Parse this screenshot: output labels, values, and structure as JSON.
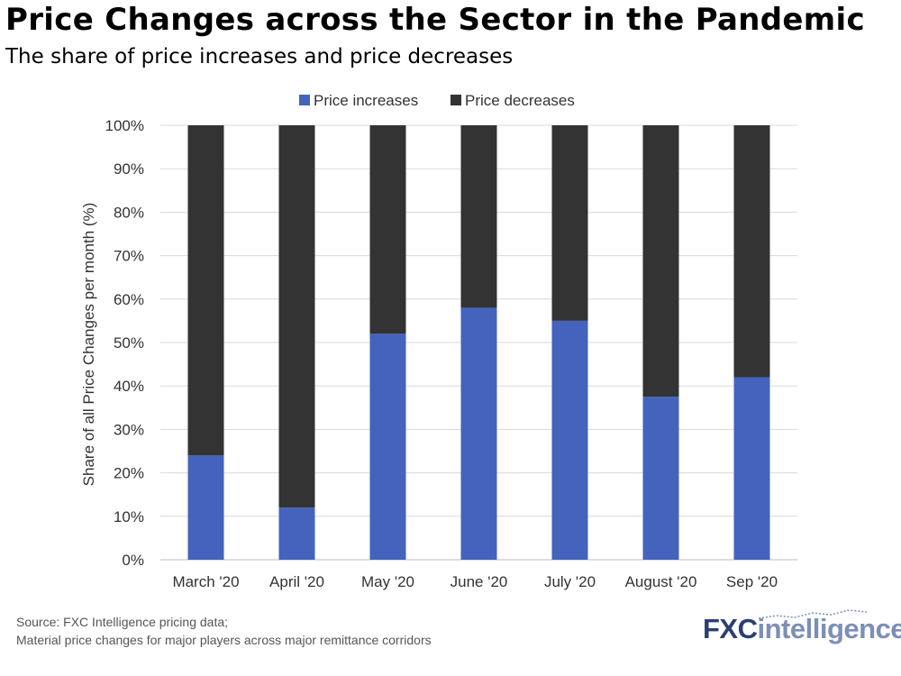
{
  "header": {
    "title": "Price Changes across the Sector in the Pandemic",
    "subtitle": "The share of price increases and price decreases"
  },
  "footer": {
    "source_line1": "Source: FXC Intelligence pricing data;",
    "source_line2": "Material price changes for major players across major remittance corridors"
  },
  "logo": {
    "part1": "FXC",
    "part2": "intelligence",
    "trademark": "™"
  },
  "colors": {
    "increase": "#4463bd",
    "decrease": "#333333",
    "grid": "#d9d9d9"
  },
  "chart_data": {
    "type": "bar",
    "stacked": true,
    "title": "Price Changes across the Sector in the Pandemic",
    "subtitle": "The share of price increases and price decreases",
    "xlabel": "",
    "ylabel": "Share of all Price Changes per month (%)",
    "categories": [
      "March '20",
      "April '20",
      "May '20",
      "June '20",
      "July '20",
      "August '20",
      "Sep '20"
    ],
    "series": [
      {
        "name": "Price increases",
        "values": [
          24,
          12,
          52,
          58,
          55,
          37.5,
          42
        ]
      },
      {
        "name": "Price decreases",
        "values": [
          76,
          88,
          48,
          42,
          45,
          62.5,
          58
        ]
      }
    ],
    "ylim": [
      0,
      100
    ],
    "yticks": [
      "0%",
      "10%",
      "20%",
      "30%",
      "40%",
      "50%",
      "60%",
      "70%",
      "80%",
      "90%",
      "100%"
    ],
    "grid": true,
    "legend_position": "top"
  }
}
